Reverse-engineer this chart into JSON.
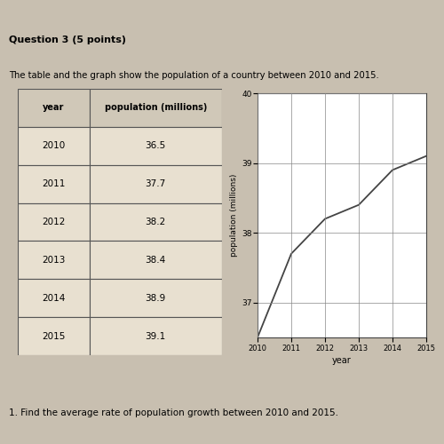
{
  "years": [
    2010,
    2011,
    2012,
    2013,
    2014,
    2015
  ],
  "population": [
    36.5,
    37.7,
    38.2,
    38.4,
    38.9,
    39.1
  ],
  "table_col1": [
    "year",
    "2010",
    "2011",
    "2012",
    "2013",
    "2014",
    "2015"
  ],
  "table_col2": [
    "population (millions)",
    "36.5",
    "37.7",
    "38.2",
    "38.4",
    "38.9",
    "39.1"
  ],
  "title_text": "The table and the graph show the population of a country between 2010 and 2015.",
  "question_text": "Question 3 (5 points)",
  "footer_text": "1. Find the average rate of population growth between 2010 and 2015.",
  "xlabel": "year",
  "ylabel": "population (millions)",
  "ylim": [
    36.5,
    40
  ],
  "yticks": [
    37,
    38,
    39,
    40
  ],
  "xlim": [
    2010,
    2015
  ],
  "xticks": [
    2010,
    2011,
    2012,
    2013,
    2014,
    2015
  ],
  "bg_color": "#c8bfb0",
  "plot_bg": "#ffffff",
  "line_color": "#444444",
  "grid_color": "#888888",
  "header_bg": "#d0c8b8",
  "cell_bg": "#e8e0d0",
  "table_border_color": "#555555",
  "top_bar_color": "#555555"
}
